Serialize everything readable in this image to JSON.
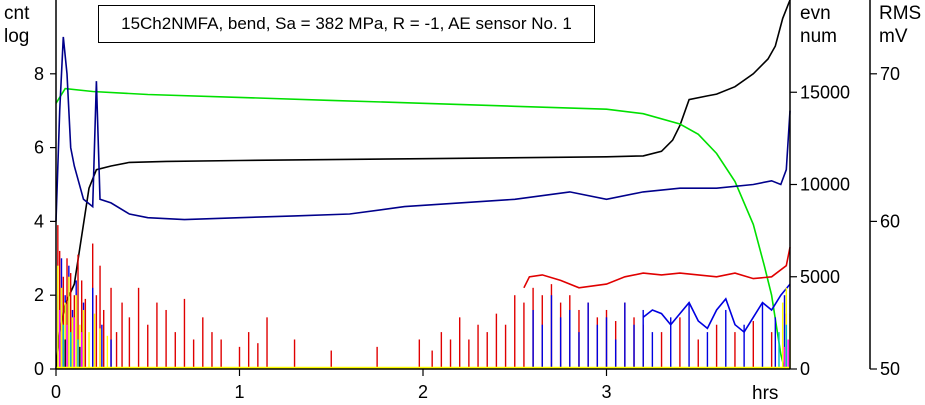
{
  "chart_data": {
    "type": "line",
    "title": "15Ch2NMFA, bend, Sa = 382 MPa, R = -1, AE sensor No. 1",
    "xlabel": "hrs",
    "xlim": [
      0,
      4.0
    ],
    "x_ticks": [
      0,
      1,
      2,
      3
    ],
    "axes": {
      "count_log": {
        "label_line1": "cnt",
        "label_line2": "log",
        "lim": [
          0,
          10
        ],
        "ticks": [
          0,
          2,
          4,
          6,
          8
        ]
      },
      "events": {
        "label_line1": "evn",
        "label_line2": "num",
        "lim": [
          0,
          20000
        ],
        "ticks": [
          0,
          5000,
          10000,
          15000
        ]
      },
      "rms": {
        "label_line1": "RMS",
        "label_line2": "mV",
        "lim": [
          50,
          75
        ],
        "ticks": [
          50,
          60,
          70
        ]
      }
    },
    "series": [
      {
        "axis": "events",
        "color": "#000000",
        "kind": "line",
        "points": [
          [
            0,
            0
          ],
          [
            0.02,
            2000
          ],
          [
            0.05,
            3500
          ],
          [
            0.1,
            4600
          ],
          [
            0.18,
            9800
          ],
          [
            0.22,
            10800
          ],
          [
            0.3,
            11000
          ],
          [
            0.4,
            11200
          ],
          [
            0.6,
            11250
          ],
          [
            1.0,
            11300
          ],
          [
            2.0,
            11400
          ],
          [
            3.0,
            11500
          ],
          [
            3.2,
            11550
          ],
          [
            3.3,
            11800
          ],
          [
            3.36,
            12400
          ],
          [
            3.4,
            13200
          ],
          [
            3.45,
            14600
          ],
          [
            3.55,
            14800
          ],
          [
            3.6,
            14900
          ],
          [
            3.7,
            15300
          ],
          [
            3.8,
            16000
          ],
          [
            3.88,
            16800
          ],
          [
            3.92,
            17500
          ],
          [
            3.96,
            19000
          ],
          [
            4.0,
            20000
          ]
        ]
      },
      {
        "axis": "rms",
        "color": "#00e000",
        "kind": "line",
        "points": [
          [
            0,
            68
          ],
          [
            0.05,
            69
          ],
          [
            0.2,
            68.8
          ],
          [
            0.5,
            68.6
          ],
          [
            1.0,
            68.4
          ],
          [
            1.5,
            68.2
          ],
          [
            2.0,
            68.0
          ],
          [
            2.5,
            67.8
          ],
          [
            3.0,
            67.6
          ],
          [
            3.2,
            67.3
          ],
          [
            3.4,
            66.6
          ],
          [
            3.5,
            65.9
          ],
          [
            3.6,
            64.6
          ],
          [
            3.7,
            62.7
          ],
          [
            3.8,
            59.8
          ],
          [
            3.86,
            57.0
          ],
          [
            3.9,
            55.0
          ],
          [
            3.95,
            51.0
          ],
          [
            3.97,
            50.0
          ]
        ]
      },
      {
        "axis": "count_log",
        "color": "#00008b",
        "kind": "line",
        "points": [
          [
            0,
            4
          ],
          [
            0.02,
            7
          ],
          [
            0.04,
            9
          ],
          [
            0.06,
            8
          ],
          [
            0.08,
            6
          ],
          [
            0.1,
            5.5
          ],
          [
            0.15,
            4.6
          ],
          [
            0.2,
            4.4
          ],
          [
            0.22,
            7.8
          ],
          [
            0.24,
            4.6
          ],
          [
            0.3,
            4.5
          ],
          [
            0.4,
            4.2
          ],
          [
            0.5,
            4.1
          ],
          [
            0.7,
            4.05
          ],
          [
            1.0,
            4.1
          ],
          [
            1.3,
            4.15
          ],
          [
            1.6,
            4.2
          ],
          [
            1.9,
            4.4
          ],
          [
            2.2,
            4.5
          ],
          [
            2.5,
            4.6
          ],
          [
            2.8,
            4.8
          ],
          [
            3.0,
            4.6
          ],
          [
            3.2,
            4.8
          ],
          [
            3.4,
            4.9
          ],
          [
            3.6,
            4.9
          ],
          [
            3.8,
            5.0
          ],
          [
            3.9,
            5.1
          ],
          [
            3.95,
            5.0
          ],
          [
            3.98,
            5.4
          ],
          [
            4.0,
            7.0
          ]
        ]
      },
      {
        "axis": "count_log",
        "color": "#e00000",
        "kind": "line",
        "points": [
          [
            2.55,
            2.2
          ],
          [
            2.58,
            2.5
          ],
          [
            2.65,
            2.55
          ],
          [
            2.75,
            2.4
          ],
          [
            2.85,
            2.2
          ],
          [
            3.0,
            2.3
          ],
          [
            3.1,
            2.5
          ],
          [
            3.2,
            2.6
          ],
          [
            3.3,
            2.55
          ],
          [
            3.4,
            2.6
          ],
          [
            3.6,
            2.5
          ],
          [
            3.7,
            2.6
          ],
          [
            3.8,
            2.45
          ],
          [
            3.9,
            2.5
          ],
          [
            3.98,
            2.8
          ],
          [
            4.0,
            3.3
          ]
        ]
      },
      {
        "axis": "count_log",
        "color": "#0000e0",
        "kind": "line",
        "points": [
          [
            3.2,
            1.4
          ],
          [
            3.25,
            1.6
          ],
          [
            3.3,
            1.5
          ],
          [
            3.35,
            1.2
          ],
          [
            3.4,
            1.5
          ],
          [
            3.45,
            1.8
          ],
          [
            3.5,
            1.3
          ],
          [
            3.55,
            1.1
          ],
          [
            3.6,
            1.6
          ],
          [
            3.65,
            1.9
          ],
          [
            3.7,
            1.2
          ],
          [
            3.75,
            1.0
          ],
          [
            3.8,
            1.4
          ],
          [
            3.85,
            1.8
          ],
          [
            3.9,
            1.6
          ],
          [
            3.95,
            2.0
          ],
          [
            4.0,
            2.3
          ]
        ]
      },
      {
        "axis": "count_log",
        "color": "#e00000",
        "kind": "bars",
        "points": [
          [
            0.01,
            3.9
          ],
          [
            0.02,
            3.2
          ],
          [
            0.04,
            2.5
          ],
          [
            0.06,
            3.0
          ],
          [
            0.08,
            2.6
          ],
          [
            0.1,
            2.0
          ],
          [
            0.12,
            3.1
          ],
          [
            0.14,
            2.4
          ],
          [
            0.16,
            1.9
          ],
          [
            0.2,
            3.4
          ],
          [
            0.22,
            2.0
          ],
          [
            0.24,
            2.8
          ],
          [
            0.26,
            1.6
          ],
          [
            0.3,
            2.2
          ],
          [
            0.33,
            1.0
          ],
          [
            0.36,
            1.8
          ],
          [
            0.4,
            1.4
          ],
          [
            0.45,
            2.2
          ],
          [
            0.5,
            1.2
          ],
          [
            0.55,
            1.8
          ],
          [
            0.6,
            1.6
          ],
          [
            0.65,
            1.0
          ],
          [
            0.7,
            1.9
          ],
          [
            0.75,
            0.8
          ],
          [
            0.8,
            1.4
          ],
          [
            0.85,
            1.0
          ],
          [
            0.9,
            0.8
          ],
          [
            1.0,
            0.6
          ],
          [
            1.05,
            1.0
          ],
          [
            1.1,
            0.7
          ],
          [
            1.15,
            1.4
          ],
          [
            1.3,
            0.8
          ],
          [
            1.5,
            0.5
          ],
          [
            1.75,
            0.6
          ],
          [
            1.98,
            0.8
          ],
          [
            2.05,
            0.5
          ],
          [
            2.1,
            1.0
          ],
          [
            2.15,
            0.8
          ],
          [
            2.2,
            1.4
          ],
          [
            2.25,
            0.8
          ],
          [
            2.3,
            1.2
          ],
          [
            2.35,
            1.0
          ],
          [
            2.4,
            1.5
          ],
          [
            2.45,
            1.2
          ],
          [
            2.5,
            2.0
          ],
          [
            2.55,
            1.8
          ],
          [
            2.6,
            2.2
          ],
          [
            2.65,
            2.0
          ],
          [
            2.7,
            2.3
          ],
          [
            2.75,
            1.8
          ],
          [
            2.8,
            2.0
          ],
          [
            2.85,
            1.6
          ],
          [
            2.9,
            1.8
          ],
          [
            2.95,
            1.4
          ],
          [
            3.0,
            1.6
          ],
          [
            3.05,
            1.3
          ],
          [
            3.1,
            1.8
          ],
          [
            3.15,
            1.4
          ],
          [
            3.2,
            1.2
          ],
          [
            3.3,
            1.0
          ],
          [
            3.4,
            1.4
          ],
          [
            3.5,
            0.8
          ],
          [
            3.6,
            1.2
          ],
          [
            3.7,
            1.0
          ],
          [
            3.8,
            1.3
          ],
          [
            3.9,
            1.0
          ],
          [
            3.98,
            1.5
          ]
        ]
      },
      {
        "axis": "count_log",
        "color": "#0000e0",
        "kind": "bars",
        "points": [
          [
            0.01,
            2.0
          ],
          [
            0.03,
            3.0
          ],
          [
            0.05,
            2.0
          ],
          [
            0.07,
            2.8
          ],
          [
            0.09,
            1.6
          ],
          [
            0.11,
            2.4
          ],
          [
            0.15,
            1.8
          ],
          [
            0.2,
            2.2
          ],
          [
            0.25,
            1.2
          ],
          [
            0.3,
            0.8
          ],
          [
            2.6,
            1.6
          ],
          [
            2.65,
            1.2
          ],
          [
            2.7,
            2.0
          ],
          [
            2.75,
            1.4
          ],
          [
            2.8,
            1.6
          ],
          [
            2.85,
            1.0
          ],
          [
            2.9,
            1.8
          ],
          [
            2.95,
            1.2
          ],
          [
            3.0,
            1.4
          ],
          [
            3.05,
            0.8
          ],
          [
            3.1,
            1.8
          ],
          [
            3.15,
            1.2
          ],
          [
            3.2,
            1.6
          ],
          [
            3.25,
            1.0
          ],
          [
            3.35,
            1.4
          ],
          [
            3.45,
            1.8
          ],
          [
            3.55,
            1.0
          ],
          [
            3.65,
            1.6
          ],
          [
            3.75,
            1.2
          ],
          [
            3.85,
            1.8
          ],
          [
            3.92,
            1.4
          ],
          [
            3.97,
            2.0
          ]
        ]
      },
      {
        "axis": "count_log",
        "color": "#ffff00",
        "kind": "bars",
        "points": [
          [
            0.01,
            2.8
          ],
          [
            0.03,
            2.2
          ],
          [
            0.05,
            1.8
          ],
          [
            0.07,
            2.5
          ],
          [
            0.09,
            1.4
          ],
          [
            0.11,
            2.0
          ],
          [
            0.13,
            1.2
          ],
          [
            0.15,
            1.6
          ],
          [
            0.18,
            1.0
          ],
          [
            0.21,
            1.5
          ],
          [
            0.24,
            1.1
          ],
          [
            0.28,
            0.9
          ],
          [
            3.96,
            1.8
          ],
          [
            3.98,
            2.2
          ],
          [
            4.0,
            1.5
          ]
        ]
      },
      {
        "axis": "count_log",
        "color": "#ff00ff",
        "kind": "bars",
        "points": [
          [
            0.02,
            1.6
          ],
          [
            0.06,
            1.2
          ],
          [
            0.1,
            1.4
          ],
          [
            0.14,
            1.0
          ],
          [
            3.97,
            0.6
          ],
          [
            3.99,
            0.8
          ]
        ]
      },
      {
        "axis": "count_log",
        "color": "#00c0c0",
        "kind": "bars",
        "points": [
          [
            0.04,
            1.2
          ],
          [
            0.08,
            1.0
          ],
          [
            0.12,
            0.8
          ],
          [
            3.94,
            1.0
          ],
          [
            3.98,
            1.2
          ]
        ]
      },
      {
        "axis": "count_log",
        "color": "#000000",
        "kind": "bars",
        "points": [
          [
            0.05,
            0.8
          ],
          [
            0.13,
            0.6
          ]
        ]
      }
    ]
  }
}
